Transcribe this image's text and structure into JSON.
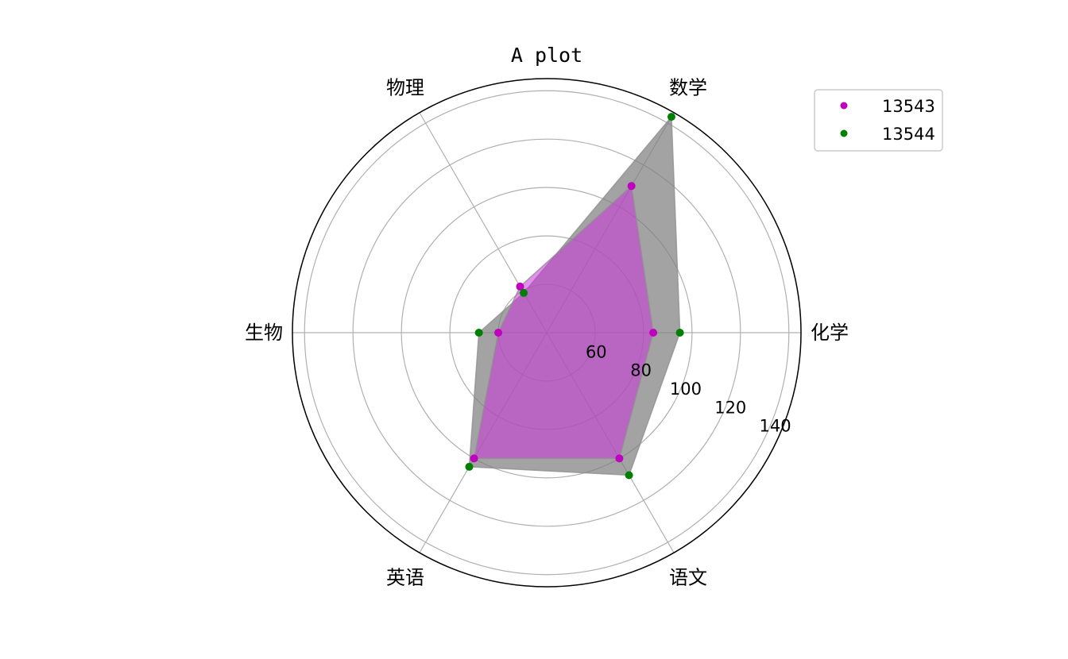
{
  "chart_data": {
    "type": "radar",
    "title": "A plot",
    "categories": [
      "化学",
      "数学",
      "物理",
      "生物",
      "英语",
      "语文"
    ],
    "radial_ticks": [
      60,
      80,
      100,
      120,
      140
    ],
    "rlim": [
      40,
      145
    ],
    "grid": true,
    "legend_position": "top-right",
    "series": [
      {
        "name": "13543",
        "values": [
          84,
          110,
          62,
          60,
          100,
          100
        ],
        "color": "#bf00bf",
        "fill": "#cc33dd"
      },
      {
        "name": "13544",
        "values": [
          95,
          143,
          59,
          68,
          104,
          108
        ],
        "color": "#008000",
        "fill": "#808080"
      }
    ]
  }
}
